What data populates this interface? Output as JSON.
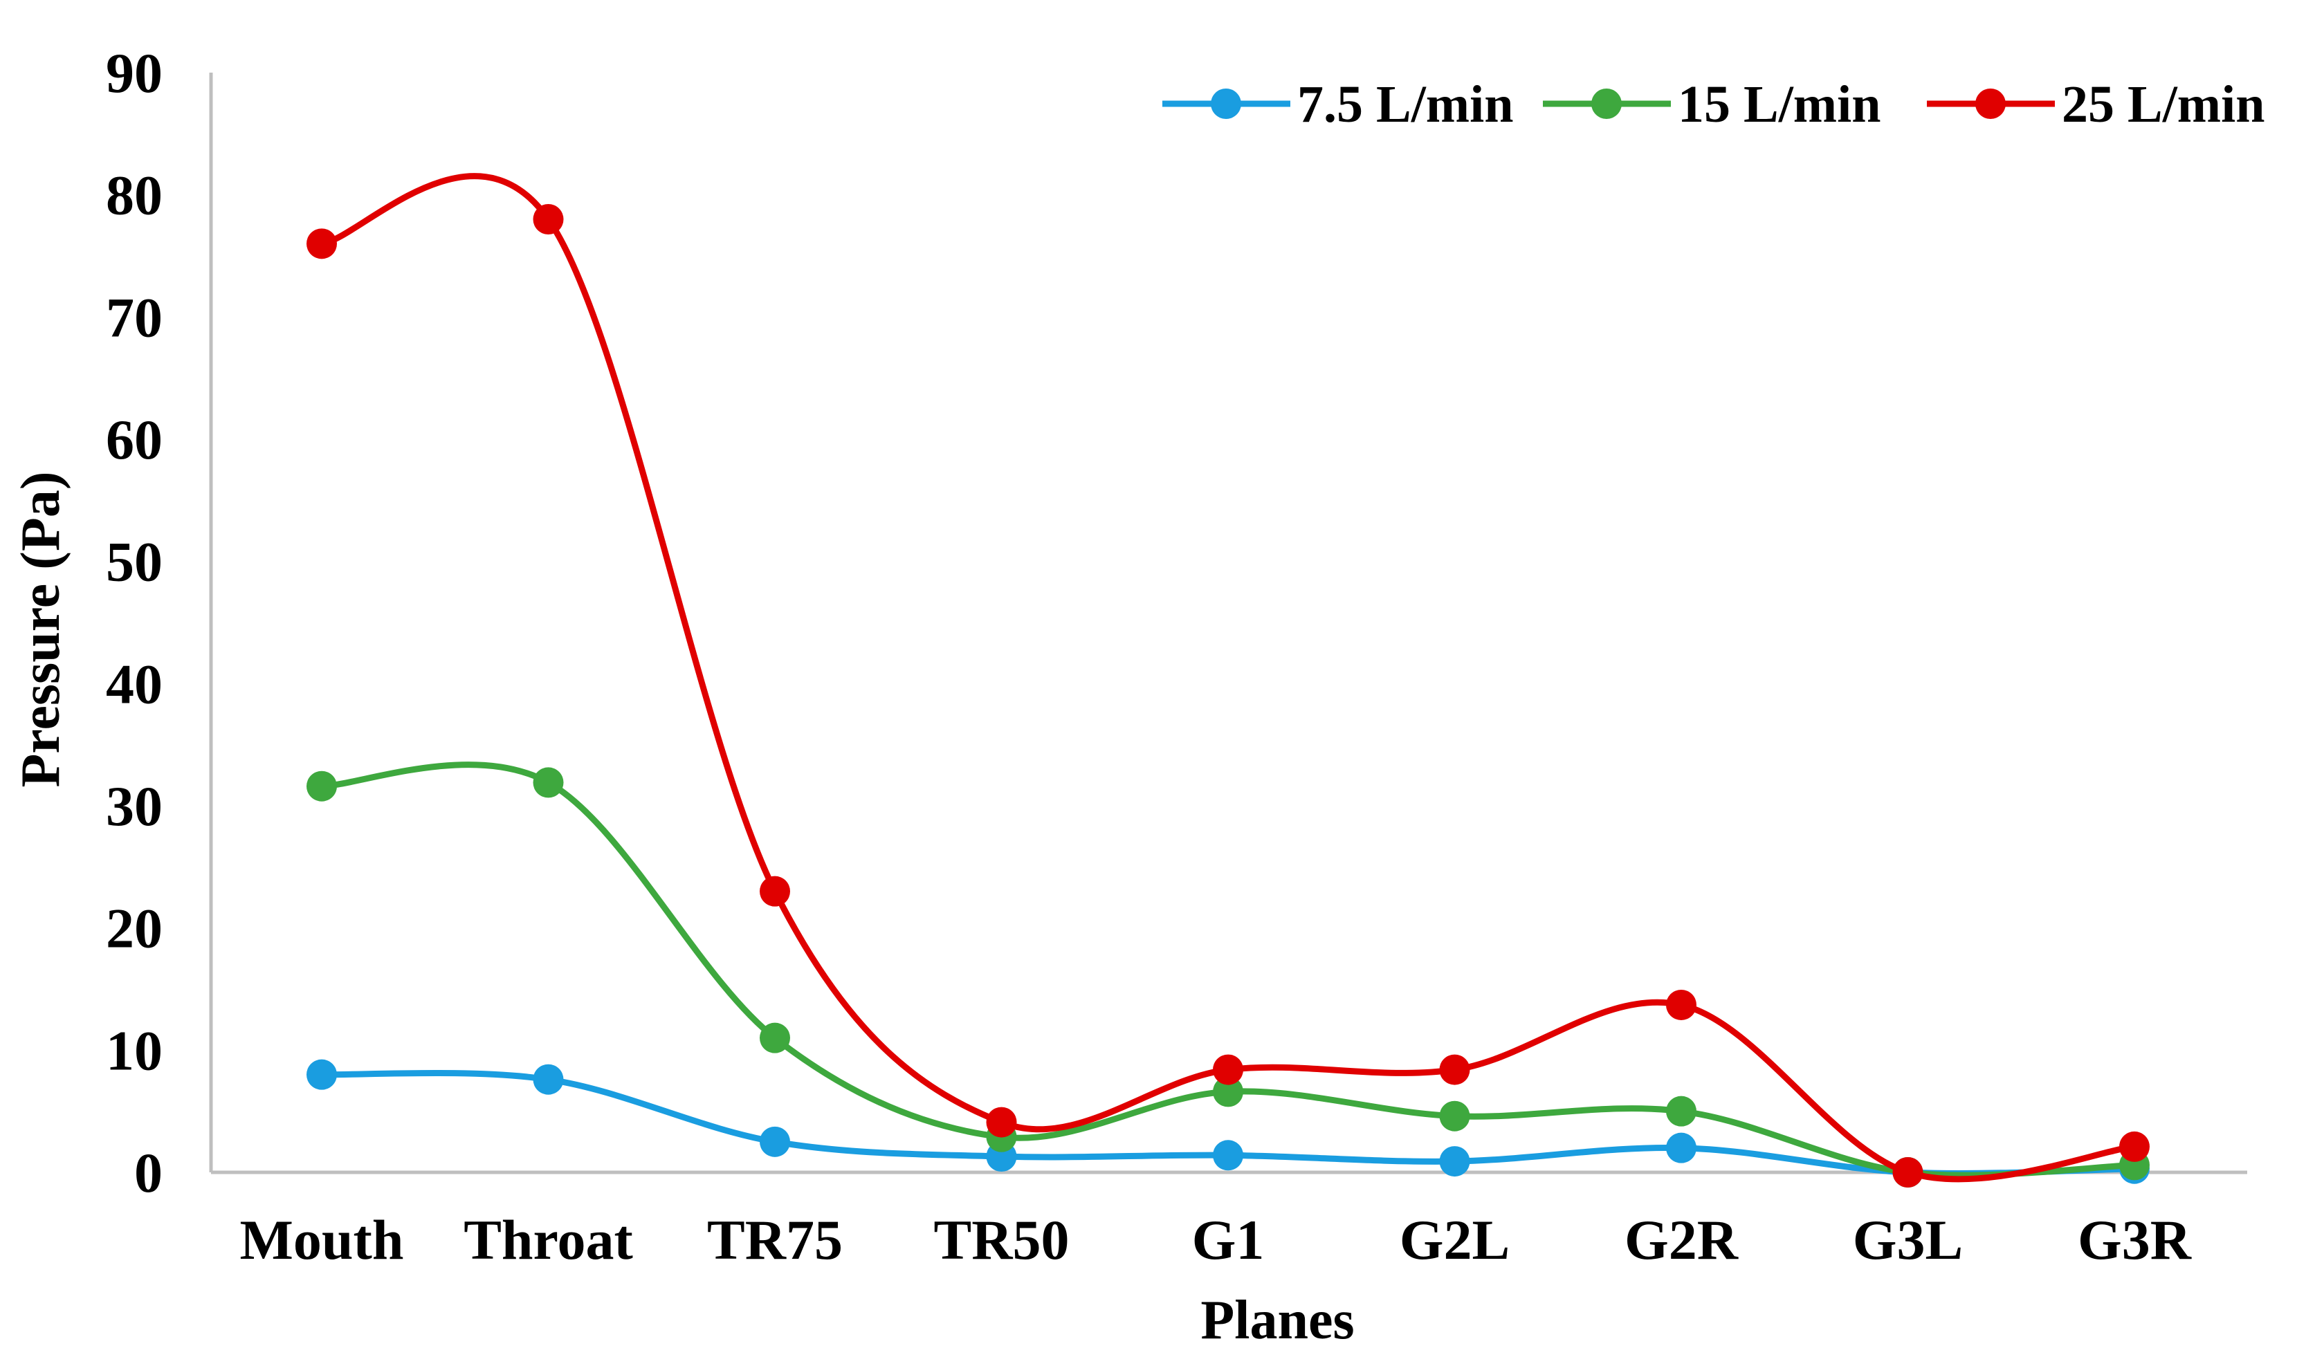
{
  "chart_data": {
    "type": "line",
    "smooth": true,
    "title": "",
    "xlabel": "Planes",
    "ylabel": "Pressure (Pa)",
    "categories": [
      "Mouth",
      "Throat",
      "TR75",
      "TR50",
      "G1",
      "G2L",
      "G2R",
      "G3L",
      "G3R"
    ],
    "ylim": [
      0,
      90
    ],
    "yticks": [
      "0",
      "10",
      "20",
      "30",
      "40",
      "50",
      "60",
      "70",
      "80",
      "90"
    ],
    "grid": false,
    "legend_position": "top-right",
    "series": [
      {
        "name": "7.5 L/min",
        "color": "#1a9de0",
        "values": [
          8.0,
          7.6,
          2.5,
          1.3,
          1.4,
          0.9,
          2.0,
          0.0,
          0.3
        ]
      },
      {
        "name": "15 L/min",
        "color": "#3ea83e",
        "values": [
          31.6,
          31.9,
          11.0,
          2.9,
          6.6,
          4.6,
          5.0,
          0.0,
          0.6
        ]
      },
      {
        "name": "25 L/min",
        "color": "#e00000",
        "values": [
          76.0,
          78.0,
          23.0,
          4.1,
          8.4,
          8.4,
          13.7,
          0.0,
          2.1
        ]
      }
    ]
  }
}
